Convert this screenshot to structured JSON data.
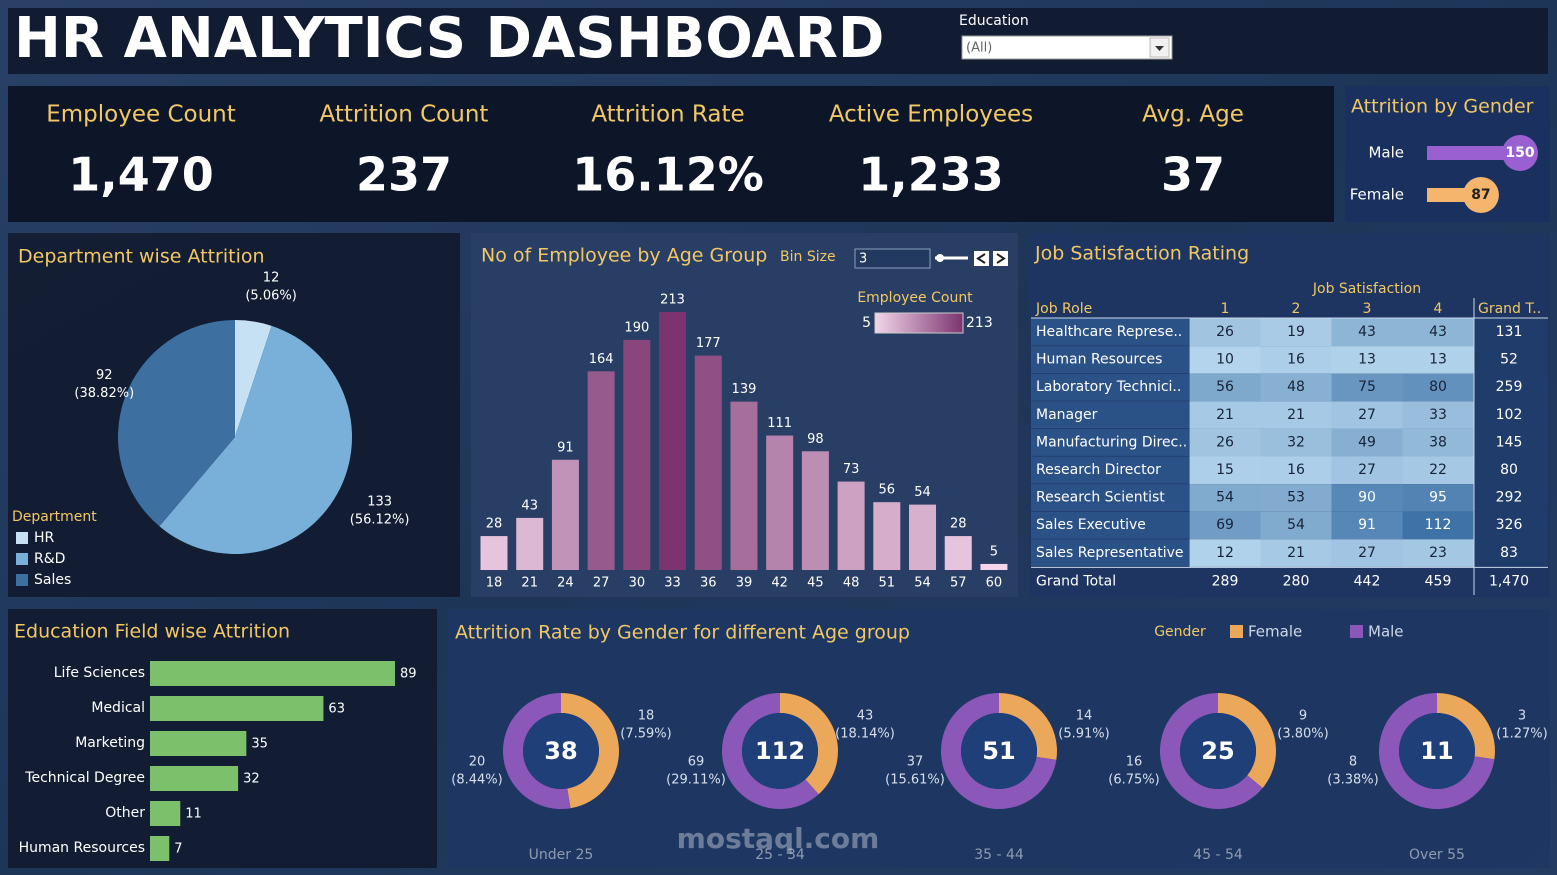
{
  "header": {
    "title": "HR ANALYTICS DASHBOARD",
    "filter_label": "Education",
    "filter_value": "(All)"
  },
  "kpis": [
    {
      "label": "Employee Count",
      "value": "1,470"
    },
    {
      "label": "Attrition Count",
      "value": "237"
    },
    {
      "label": "Attrition Rate",
      "value": "16.12%"
    },
    {
      "label": "Active Employees",
      "value": "1,233"
    },
    {
      "label": "Avg. Age",
      "value": "37"
    }
  ],
  "chart_data": [
    {
      "type": "hbar-dot",
      "title": "Attrition by Gender",
      "categories": [
        "Male",
        "Female"
      ],
      "values": [
        150,
        87
      ],
      "colors": [
        "#9a5fd0",
        "#f6b56c"
      ]
    },
    {
      "type": "pie",
      "title": "Department wise Attrition",
      "legend_title": "Department",
      "categories": [
        "HR",
        "R&D",
        "Sales"
      ],
      "values": [
        12,
        133,
        92
      ],
      "percent_labels": [
        "(5.06%)",
        "(56.12%)",
        "(38.82%)"
      ],
      "colors": [
        "#c7e1f4",
        "#78b0da",
        "#3d6fa0"
      ]
    },
    {
      "type": "histogram",
      "title": "No of Employee by Age Group",
      "bin_size_label": "Bin Size",
      "bin_size": 3,
      "legend_title": "Employee Count",
      "color_range": [
        5,
        213
      ],
      "color_low": "#f3d6ea",
      "color_high": "#7b3470",
      "categories": [
        18,
        21,
        24,
        27,
        30,
        33,
        36,
        39,
        42,
        45,
        48,
        51,
        54,
        57,
        60
      ],
      "values": [
        28,
        43,
        91,
        164,
        190,
        213,
        177,
        139,
        111,
        98,
        73,
        56,
        54,
        28,
        5
      ]
    },
    {
      "type": "hbar",
      "title": "Education Field wise Attrition",
      "color": "#7cc06b",
      "categories": [
        "Life Sciences",
        "Medical",
        "Marketing",
        "Technical Degree",
        "Other",
        "Human Resources"
      ],
      "values": [
        89,
        63,
        35,
        32,
        11,
        7
      ]
    },
    {
      "type": "donut",
      "title": "Attrition Rate by Gender for different Age group",
      "legend_title": "Gender",
      "categories": [
        "Under 25",
        "25 - 34",
        "35 - 44",
        "45 - 54",
        "Over 55"
      ],
      "totals": [
        38,
        112,
        51,
        25,
        11
      ],
      "series": [
        {
          "name": "Female",
          "color": "#eba75a",
          "values": [
            18,
            43,
            14,
            9,
            3
          ],
          "percent_labels": [
            "(7.59%)",
            "(18.14%)",
            "(5.91%)",
            "(3.80%)",
            "(1.27%)"
          ]
        },
        {
          "name": "Male",
          "color": "#8b58ba",
          "values": [
            20,
            69,
            37,
            16,
            8
          ],
          "percent_labels": [
            "(8.44%)",
            "(29.11%)",
            "(15.61%)",
            "(6.75%)",
            "(3.38%)"
          ]
        }
      ]
    }
  ],
  "table": {
    "title": "Job Satisfaction Rating",
    "column_group": "Job Satisfaction",
    "columns": [
      "Job Role",
      "1",
      "2",
      "3",
      "4",
      "Grand T.."
    ],
    "rows": [
      [
        "Healthcare Represe..",
        26,
        19,
        43,
        43,
        131
      ],
      [
        "Human Resources",
        10,
        16,
        13,
        13,
        52
      ],
      [
        "Laboratory Technici..",
        56,
        48,
        75,
        80,
        259
      ],
      [
        "Manager",
        21,
        21,
        27,
        33,
        102
      ],
      [
        "Manufacturing Direc..",
        26,
        32,
        49,
        38,
        145
      ],
      [
        "Research Director",
        15,
        16,
        27,
        22,
        80
      ],
      [
        "Research Scientist",
        54,
        53,
        90,
        95,
        292
      ],
      [
        "Sales Executive",
        69,
        54,
        91,
        112,
        326
      ],
      [
        "Sales Representative",
        12,
        21,
        27,
        23,
        83
      ]
    ],
    "total_row": [
      "Grand Total",
      289,
      280,
      442,
      459,
      "1,470"
    ]
  },
  "watermark": "mostaql.com"
}
